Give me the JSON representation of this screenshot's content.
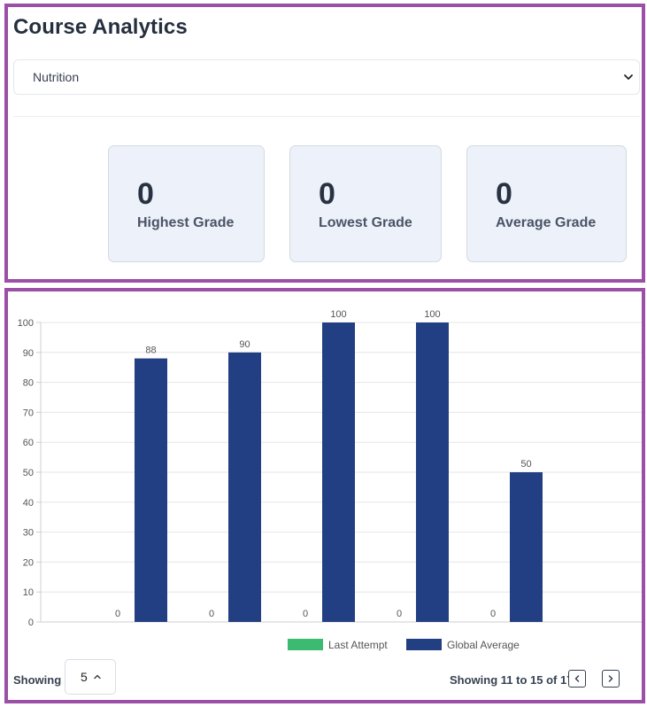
{
  "header": {
    "title": "Course Analytics"
  },
  "course_select": {
    "selected": "Nutrition"
  },
  "stats": [
    {
      "value": "0",
      "label": "Highest Grade"
    },
    {
      "value": "0",
      "label": "Lowest Grade"
    },
    {
      "value": "0",
      "label": "Average Grade"
    }
  ],
  "chart_data": {
    "type": "bar",
    "categories": [
      "",
      "",
      "",
      "",
      ""
    ],
    "series": [
      {
        "name": "Last Attempt",
        "color": "#3cba72",
        "values": [
          0,
          0,
          0,
          0,
          0
        ]
      },
      {
        "name": "Global Average",
        "color": "#233f83",
        "values": [
          88,
          90,
          100,
          100,
          50
        ]
      }
    ],
    "ylim": [
      0,
      100
    ],
    "yticks": [
      "0",
      "10",
      "20",
      "30",
      "40",
      "50",
      "60",
      "70",
      "80",
      "90",
      "100"
    ],
    "grid": true,
    "legend_position": "bottom",
    "data_labels": true
  },
  "pagination": {
    "showing_label": "Showing",
    "page_size": "5",
    "range_text": "Showing 11 to 15 of 17"
  }
}
